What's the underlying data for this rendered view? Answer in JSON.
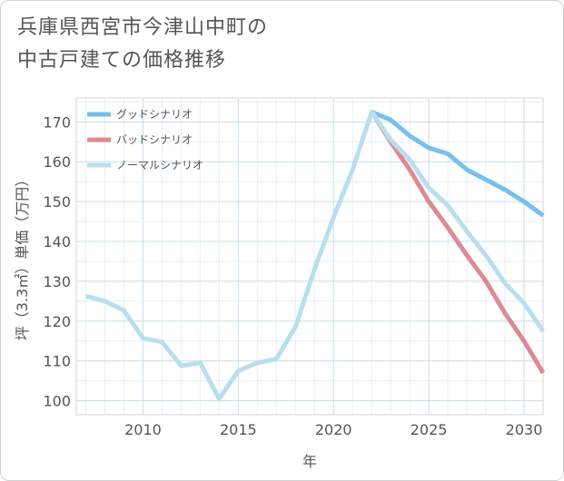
{
  "title_lines": [
    "兵庫県西宮市今津山中町の",
    "中古戸建ての価格推移"
  ],
  "chart_data": {
    "type": "line",
    "title": "兵庫県西宮市今津山中町の中古戸建ての価格推移",
    "xlabel": "年",
    "ylabel": "坪（3.3㎡）単価（万円）",
    "xlim": [
      2006.5,
      2031
    ],
    "ylim": [
      96.5,
      176
    ],
    "x_ticks": [
      2010,
      2015,
      2020,
      2025,
      2030
    ],
    "y_ticks": [
      100,
      110,
      120,
      130,
      140,
      150,
      160,
      170
    ],
    "grid": true,
    "legend_position": "top-left",
    "series": [
      {
        "name": "グッドシナリオ",
        "color": "#77c0ee",
        "x": [
          2022,
          2023,
          2024,
          2025,
          2026,
          2027,
          2028,
          2029,
          2030,
          2031
        ],
        "y": [
          172.5,
          170.5,
          166.5,
          163.5,
          162,
          158,
          155.5,
          153,
          150,
          146.5
        ]
      },
      {
        "name": "バッドシナリオ",
        "color": "#dd8a92",
        "x": [
          2022,
          2023,
          2024,
          2025,
          2026,
          2027,
          2028,
          2029,
          2030,
          2031
        ],
        "y": [
          172.5,
          165,
          158,
          150,
          143.5,
          136.5,
          130,
          122,
          115,
          107
        ]
      },
      {
        "name": "ノーマルシナリオ",
        "color": "#b9dfee",
        "x": [
          2007,
          2008,
          2009,
          2010,
          2011,
          2012,
          2013,
          2014,
          2015,
          2016,
          2017,
          2018,
          2019,
          2020,
          2021,
          2022,
          2023,
          2024,
          2025,
          2026,
          2027,
          2028,
          2029,
          2030,
          2031
        ],
        "y": [
          126.3,
          125,
          122.7,
          115.7,
          114.8,
          108.8,
          109.5,
          100.5,
          107.5,
          109.5,
          110.5,
          118.5,
          133,
          146,
          158,
          172.5,
          165.5,
          160.5,
          153.5,
          149,
          142.5,
          136.5,
          129.5,
          124.5,
          117.5
        ]
      }
    ]
  }
}
